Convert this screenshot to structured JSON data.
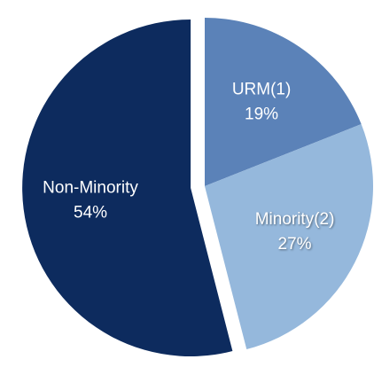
{
  "chart_data": {
    "type": "pie",
    "categories": [
      "URM(1)",
      "Minority(2)",
      "Non-Minority"
    ],
    "values": [
      19,
      27,
      54
    ],
    "value_labels": [
      "19%",
      "27%",
      "54%"
    ],
    "colors": [
      "#5b82b8",
      "#95b8dc",
      "#0d2b5e"
    ]
  }
}
